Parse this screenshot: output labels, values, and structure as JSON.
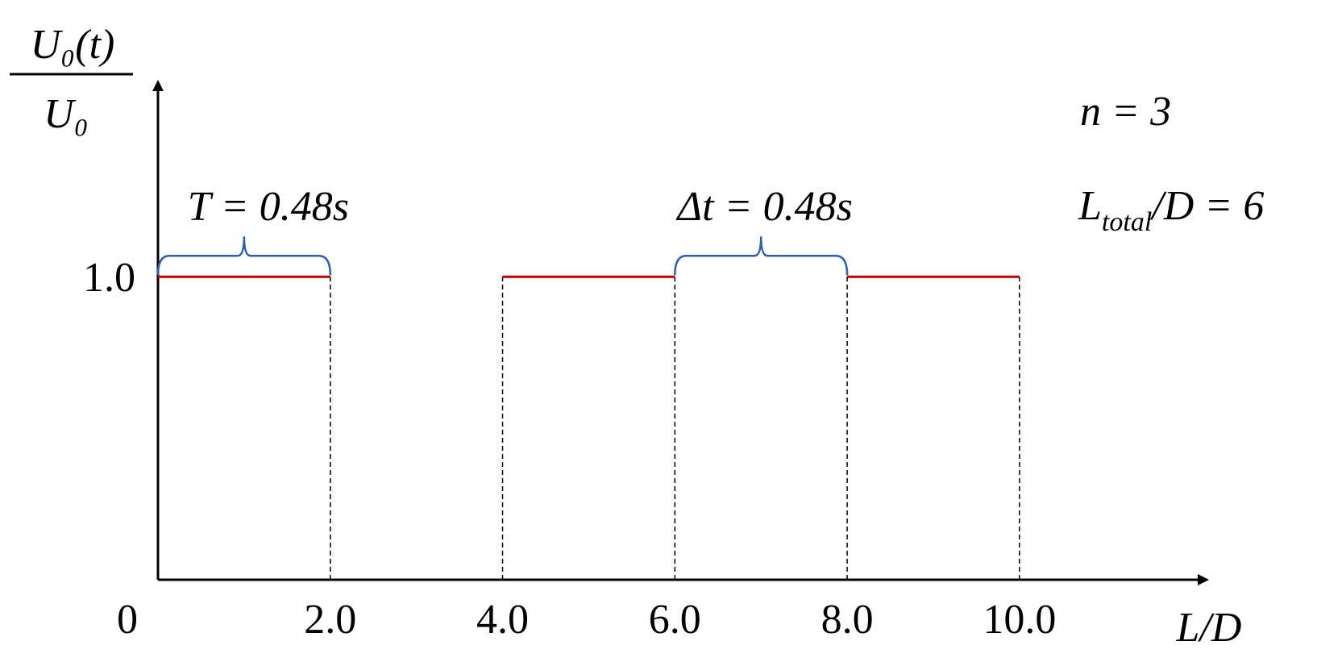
{
  "chart_data": {
    "type": "pulse",
    "ylabel": {
      "numerator": "U₀(t)",
      "denominator": "U₀"
    },
    "xlabel": "L/D",
    "series": [
      {
        "color": "#c00000",
        "x": [
          0,
          2
        ],
        "values": [
          1,
          1
        ]
      },
      {
        "color": "#c00000",
        "x": [
          4,
          6
        ],
        "values": [
          1,
          1
        ]
      },
      {
        "color": "#c00000",
        "x": [
          8,
          10
        ],
        "values": [
          1,
          1
        ]
      }
    ],
    "annotations": {
      "period": "T = 0.48s",
      "gap": "Δt = 0.48s",
      "count": "n = 3",
      "length": {
        "main": "L",
        "sub": "total",
        "rest": "/D = 6"
      }
    },
    "bracket_color": "#2f5fb0",
    "xlim": [
      0,
      12.2
    ],
    "ylim": [
      0,
      1.65
    ],
    "xticks": [
      0,
      {
        "value": 2,
        "label": "2.0"
      },
      {
        "value": 4,
        "label": "4.0"
      },
      {
        "value": 6,
        "label": "6.0"
      },
      {
        "value": 8,
        "label": "8.0"
      },
      {
        "value": 10,
        "label": "10.0"
      }
    ],
    "yticks": [
      {
        "value": 1,
        "label": "1.0"
      }
    ]
  }
}
